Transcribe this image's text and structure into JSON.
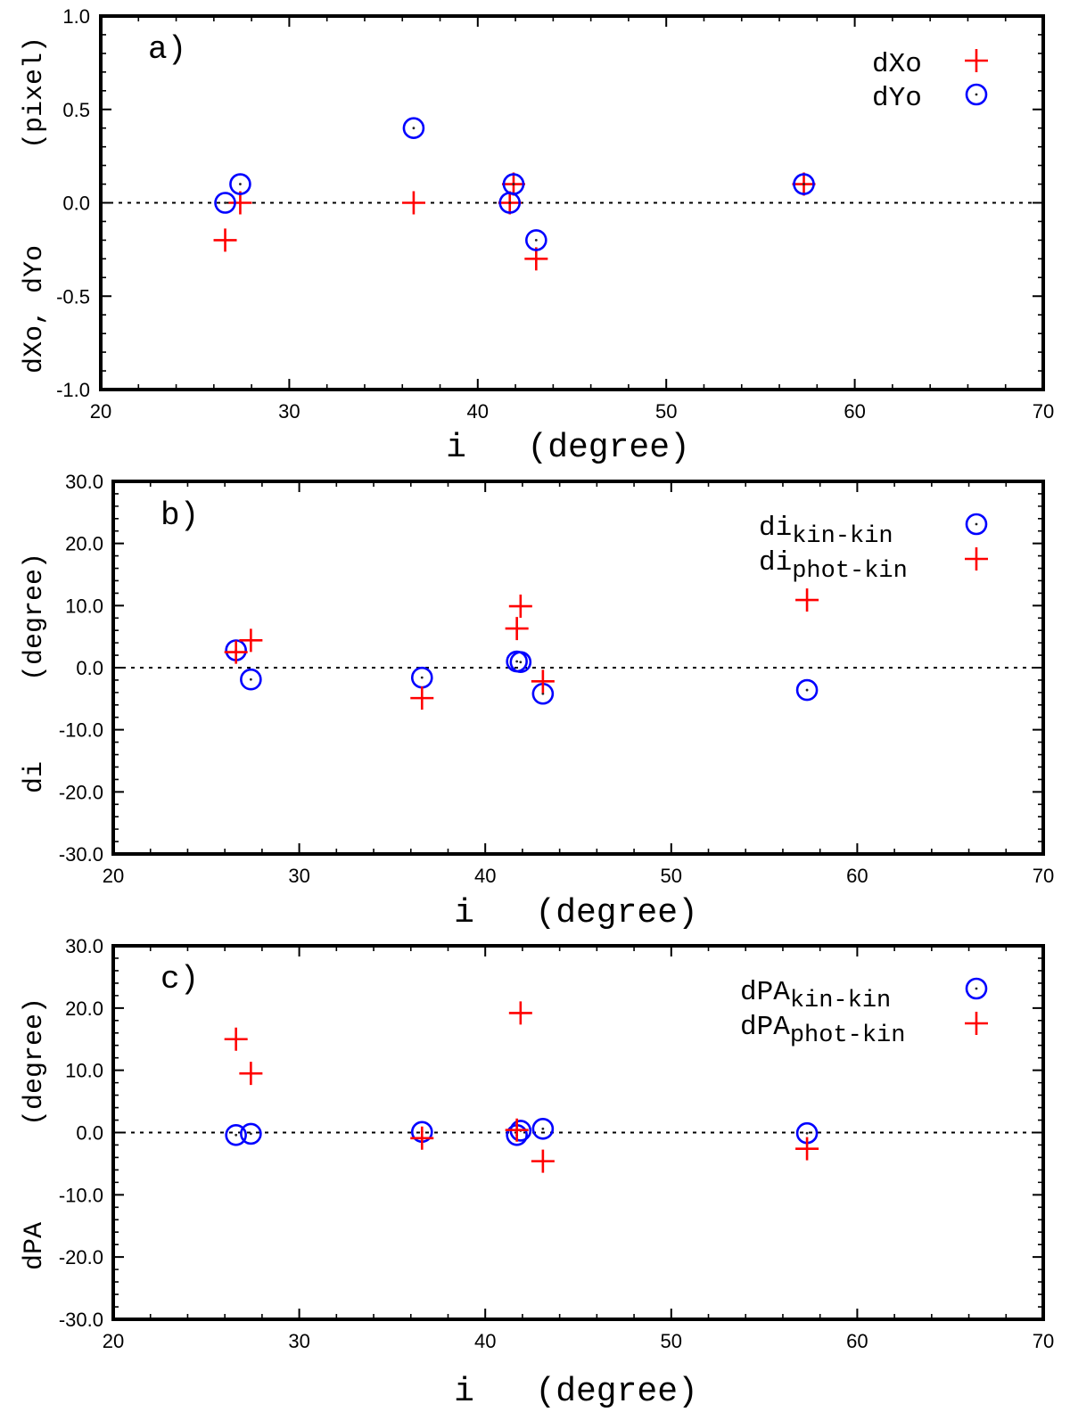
{
  "chart_data": [
    {
      "type": "scatter",
      "panel_label": "a)",
      "title": "",
      "xlabel": "i   (degree)",
      "ylabel": "dXo, dYo      (pixel)",
      "xlim": [
        20,
        70
      ],
      "ylim": [
        -1.0,
        1.0
      ],
      "xticks": [
        "20",
        "30",
        "40",
        "50",
        "60",
        "70"
      ],
      "yticks": [
        "-1.0",
        "-0.5",
        "0.0",
        "0.5",
        "1.0"
      ],
      "grid": false,
      "reference_line": {
        "y": 0,
        "style": "dotted"
      },
      "legend": {
        "position": "top-right"
      },
      "series": [
        {
          "name": "dXo",
          "marker": "plus",
          "color": "#ff0000",
          "x": [
            26.6,
            27.4,
            36.6,
            41.7,
            41.9,
            43.1,
            57.3
          ],
          "y": [
            -0.2,
            0.0,
            0.0,
            0.0,
            0.1,
            -0.3,
            0.1
          ]
        },
        {
          "name": "dYo",
          "marker": "circle",
          "color": "#0000ff",
          "x": [
            26.6,
            27.4,
            36.6,
            41.7,
            41.9,
            43.1,
            57.3
          ],
          "y": [
            0.0,
            0.1,
            0.4,
            0.0,
            0.1,
            -0.2,
            0.1
          ]
        }
      ]
    },
    {
      "type": "scatter",
      "panel_label": "b)",
      "title": "",
      "xlabel": "i   (degree)",
      "ylabel": "di     (degree)",
      "xlim": [
        20,
        70
      ],
      "ylim": [
        -30.0,
        30.0
      ],
      "xticks": [
        "20",
        "30",
        "40",
        "50",
        "60",
        "70"
      ],
      "yticks": [
        "-30.0",
        "-20.0",
        "-10.0",
        "0.0",
        "10.0",
        "20.0",
        "30.0"
      ],
      "grid": false,
      "reference_line": {
        "y": 0,
        "style": "dotted"
      },
      "legend": {
        "position": "top-right"
      },
      "series": [
        {
          "name": "di",
          "sub": "kin-kin",
          "marker": "circle",
          "color": "#0000ff",
          "x": [
            26.6,
            27.4,
            36.6,
            41.7,
            41.9,
            43.1,
            57.3
          ],
          "y": [
            2.8,
            -1.9,
            -1.6,
            1.0,
            0.9,
            -4.2,
            -3.6
          ]
        },
        {
          "name": "di",
          "sub": "phot-kin",
          "marker": "plus",
          "color": "#ff0000",
          "x": [
            26.6,
            27.4,
            36.6,
            41.7,
            41.9,
            43.1,
            57.3
          ],
          "y": [
            2.5,
            4.4,
            -4.9,
            6.3,
            9.9,
            -2.2,
            10.9
          ]
        }
      ]
    },
    {
      "type": "scatter",
      "panel_label": "c)",
      "title": "",
      "xlabel": "i   (degree)",
      "ylabel": "dPA      (degree)",
      "xlim": [
        20,
        70
      ],
      "ylim": [
        -30.0,
        30.0
      ],
      "xticks": [
        "20",
        "30",
        "40",
        "50",
        "60",
        "70"
      ],
      "yticks": [
        "-30.0",
        "-20.0",
        "-10.0",
        "0.0",
        "10.0",
        "20.0",
        "30.0"
      ],
      "grid": false,
      "reference_line": {
        "y": 0,
        "style": "dotted"
      },
      "legend": {
        "position": "top-right"
      },
      "series": [
        {
          "name": "dPA",
          "sub": "kin-kin",
          "marker": "circle",
          "color": "#0000ff",
          "x": [
            26.6,
            27.4,
            36.6,
            41.7,
            41.9,
            43.1,
            57.3
          ],
          "y": [
            -0.4,
            -0.2,
            0.1,
            -0.4,
            0.3,
            0.6,
            -0.1
          ]
        },
        {
          "name": "dPA",
          "sub": "phot-kin",
          "marker": "plus",
          "color": "#ff0000",
          "x": [
            26.6,
            27.4,
            36.6,
            41.7,
            41.9,
            43.1,
            57.3
          ],
          "y": [
            15.0,
            9.5,
            -0.9,
            0.4,
            19.2,
            -4.6,
            -2.6
          ]
        }
      ]
    }
  ],
  "colors": {
    "axes": "#000000",
    "background": "#ffffff",
    "marker_dot": "#222222"
  }
}
